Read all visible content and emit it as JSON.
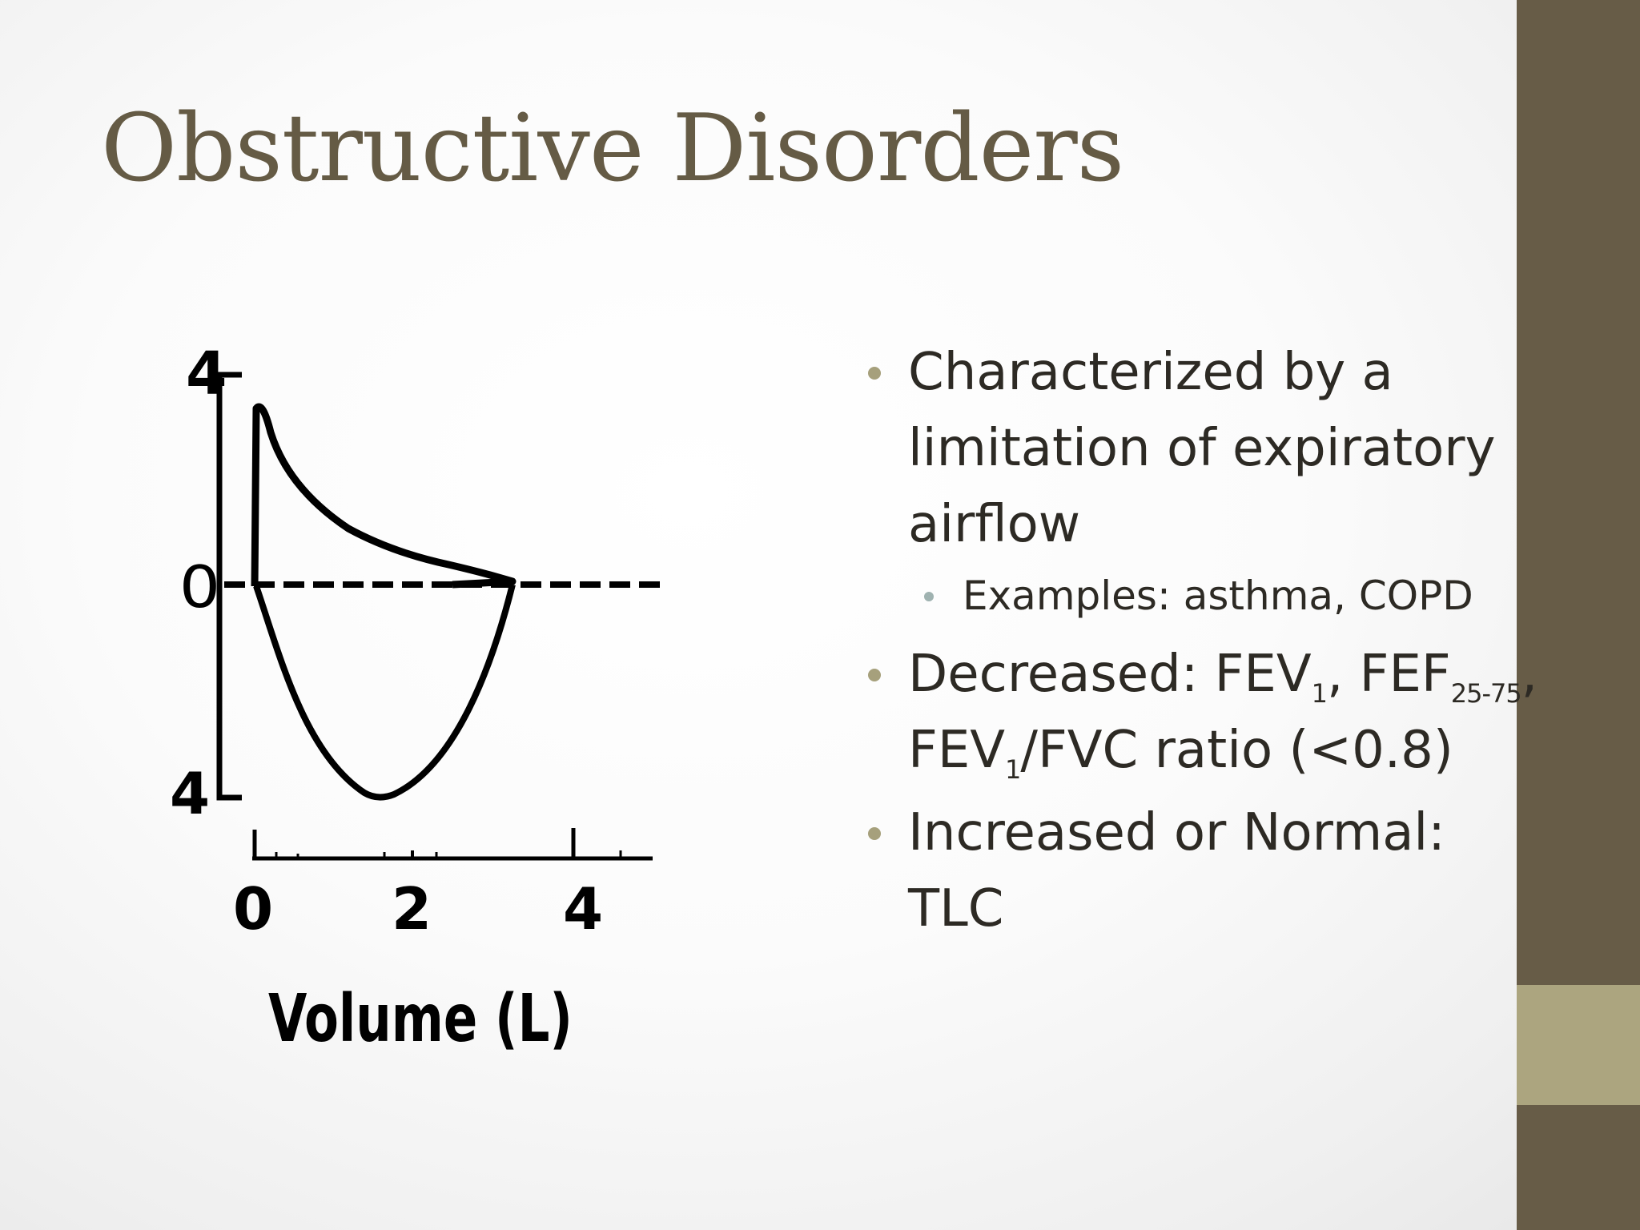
{
  "slide": {
    "title": "Obstructive Disorders"
  },
  "figure": {
    "y_tick_top": "4",
    "y_tick_mid": "0",
    "y_tick_bottom": "4",
    "x_ticks": [
      "0",
      "2",
      "4"
    ],
    "x_label": "Volume (L)"
  },
  "bullets": {
    "b1_line1": "Characterized by a",
    "b1_line2": "limitation of expiratory",
    "b1_line3": "airflow",
    "sub1": "Examples: asthma, COPD",
    "b2_pre": "Decreased: FEV",
    "b2_sub1": "1",
    "b2_mid": ", FEF",
    "b2_sub2": "25-75",
    "b2_post": ",",
    "b2_l2_pre": "FEV",
    "b2_l2_sub": "1",
    "b2_l2_post": "/FVC ratio (<0.8)",
    "b3_line1": "Increased or Normal:",
    "b3_line2": "TLC"
  },
  "colors": {
    "title": "#655b45",
    "sidebar": "#675c47",
    "sidebar_accent": "#aca57f",
    "bullet_dot": "#a6a07c",
    "sub_bullet_dot": "#9fb2b0",
    "body_text": "#2d2a24"
  }
}
